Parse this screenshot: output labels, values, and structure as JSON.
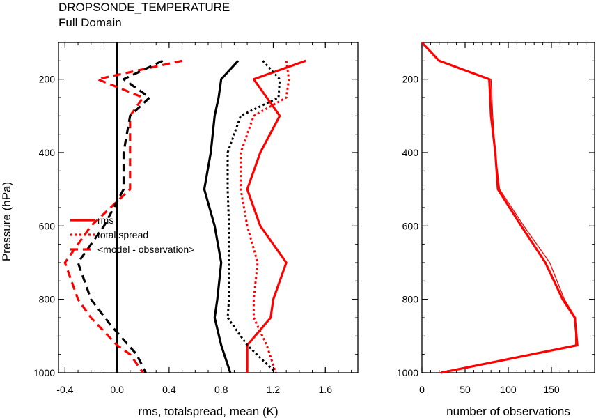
{
  "header": {
    "title": "DROPSONDE_TEMPERATURE",
    "subtitle": "Full Domain"
  },
  "colors": {
    "red": "#ff0000",
    "black": "#000000"
  },
  "chart_data": [
    {
      "type": "line",
      "orientation": "vertical-profile",
      "xlabel": "rms, totalspread, mean (K)",
      "ylabel": "Pressure (hPa)",
      "xlim": [
        -0.45,
        1.85
      ],
      "ylim": [
        100,
        1000
      ],
      "y_reversed": true,
      "xticks": [
        -0.4,
        0.0,
        0.4,
        0.8,
        1.2,
        1.6
      ],
      "xtick_labels": [
        "-0.4",
        "0.0",
        "0.4",
        "0.8",
        "1.2",
        "1.6"
      ],
      "yticks": [
        200,
        400,
        600,
        800,
        1000
      ],
      "ytick_labels": [
        "200",
        "400",
        "600",
        "800",
        "1000"
      ],
      "zero_line_x": 0.0,
      "legend_position": "center-left",
      "legend": [
        {
          "label": "rms",
          "style": "solid"
        },
        {
          "label": "total spread",
          "style": "dotted"
        },
        {
          "label": "<model - observation>",
          "style": "dashed"
        }
      ],
      "series": [
        {
          "color": "#ff0000",
          "style": "solid",
          "points": [
            [
              1.45,
              150
            ],
            [
              1.05,
              200
            ],
            [
              1.15,
              250
            ],
            [
              1.25,
              300
            ],
            [
              1.1,
              400
            ],
            [
              1.0,
              500
            ],
            [
              1.1,
              600
            ],
            [
              1.3,
              700
            ],
            [
              1.2,
              800
            ],
            [
              1.18,
              850
            ],
            [
              1.0,
              925
            ],
            [
              1.0,
              1000
            ]
          ]
        },
        {
          "color": "#ff0000",
          "style": "dotted",
          "points": [
            [
              1.3,
              150
            ],
            [
              1.32,
              200
            ],
            [
              1.3,
              250
            ],
            [
              1.05,
              300
            ],
            [
              0.95,
              400
            ],
            [
              0.95,
              500
            ],
            [
              1.0,
              600
            ],
            [
              1.08,
              700
            ],
            [
              1.05,
              800
            ],
            [
              1.05,
              850
            ],
            [
              1.15,
              925
            ],
            [
              1.22,
              1000
            ]
          ]
        },
        {
          "color": "#ff0000",
          "style": "dashed",
          "points": [
            [
              0.5,
              150
            ],
            [
              -0.15,
              200
            ],
            [
              0.2,
              250
            ],
            [
              0.1,
              300
            ],
            [
              0.1,
              400
            ],
            [
              0.1,
              500
            ],
            [
              -0.2,
              600
            ],
            [
              -0.4,
              700
            ],
            [
              -0.3,
              800
            ],
            [
              -0.2,
              850
            ],
            [
              0.0,
              925
            ],
            [
              0.1,
              950
            ],
            [
              0.2,
              1000
            ]
          ]
        },
        {
          "color": "#000000",
          "style": "solid",
          "points": [
            [
              0.93,
              150
            ],
            [
              0.8,
              200
            ],
            [
              0.78,
              250
            ],
            [
              0.75,
              300
            ],
            [
              0.72,
              400
            ],
            [
              0.67,
              500
            ],
            [
              0.75,
              600
            ],
            [
              0.8,
              700
            ],
            [
              0.77,
              800
            ],
            [
              0.75,
              850
            ],
            [
              0.8,
              925
            ],
            [
              0.87,
              1000
            ]
          ]
        },
        {
          "color": "#000000",
          "style": "dotted",
          "points": [
            [
              1.12,
              150
            ],
            [
              1.25,
              200
            ],
            [
              1.24,
              250
            ],
            [
              0.95,
              300
            ],
            [
              0.85,
              400
            ],
            [
              0.85,
              500
            ],
            [
              0.86,
              600
            ],
            [
              0.86,
              700
            ],
            [
              0.86,
              800
            ],
            [
              0.85,
              850
            ],
            [
              1.0,
              925
            ],
            [
              1.22,
              1000
            ]
          ]
        },
        {
          "color": "#000000",
          "style": "dashed",
          "points": [
            [
              0.35,
              150
            ],
            [
              0.05,
              200
            ],
            [
              0.25,
              250
            ],
            [
              0.1,
              300
            ],
            [
              0.05,
              400
            ],
            [
              0.05,
              500
            ],
            [
              -0.1,
              600
            ],
            [
              -0.3,
              700
            ],
            [
              -0.2,
              800
            ],
            [
              -0.05,
              870
            ],
            [
              0.15,
              950
            ],
            [
              0.22,
              1000
            ]
          ]
        }
      ]
    },
    {
      "type": "line",
      "orientation": "vertical-profile",
      "xlabel": "number of observations",
      "ylabel": "",
      "xlim": [
        0,
        200
      ],
      "ylim": [
        100,
        1000
      ],
      "y_reversed": true,
      "xticks": [
        0,
        50,
        100,
        150
      ],
      "xtick_labels": [
        "0",
        "50",
        "100",
        "150"
      ],
      "yticks": [
        200,
        400,
        600,
        800,
        1000
      ],
      "ytick_labels": [
        "200",
        "400",
        "600",
        "800",
        "1000"
      ],
      "series": [
        {
          "color": "#ff0000",
          "style": "solid",
          "width": "thick",
          "points": [
            [
              0,
              100
            ],
            [
              20,
              150
            ],
            [
              78,
              200
            ],
            [
              80,
              300
            ],
            [
              85,
              400
            ],
            [
              88,
              500
            ],
            [
              115,
              600
            ],
            [
              143,
              700
            ],
            [
              163,
              800
            ],
            [
              177,
              850
            ],
            [
              180,
              925
            ],
            [
              22,
              1000
            ]
          ]
        },
        {
          "color": "#ff0000",
          "style": "solid",
          "width": "thin",
          "points": [
            [
              0,
              100
            ],
            [
              20,
              150
            ],
            [
              80,
              200
            ],
            [
              82,
              300
            ],
            [
              85,
              400
            ],
            [
              90,
              500
            ],
            [
              118,
              600
            ],
            [
              148,
              700
            ],
            [
              165,
              800
            ],
            [
              178,
              850
            ],
            [
              178,
              925
            ],
            [
              20,
              1000
            ]
          ]
        }
      ]
    }
  ]
}
